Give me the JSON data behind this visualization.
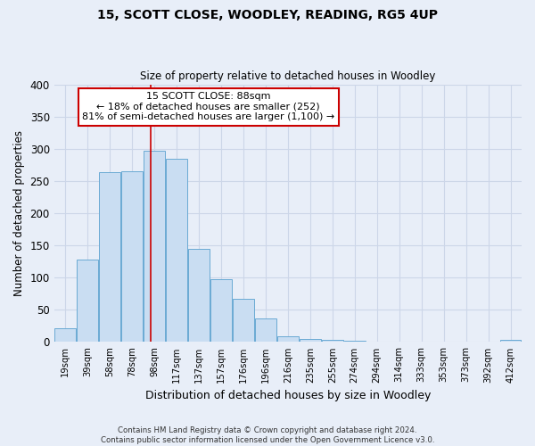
{
  "title": "15, SCOTT CLOSE, WOODLEY, READING, RG5 4UP",
  "subtitle": "Size of property relative to detached houses in Woodley",
  "xlabel": "Distribution of detached houses by size in Woodley",
  "ylabel": "Number of detached properties",
  "bar_labels": [
    "19sqm",
    "39sqm",
    "58sqm",
    "78sqm",
    "98sqm",
    "117sqm",
    "137sqm",
    "157sqm",
    "176sqm",
    "196sqm",
    "216sqm",
    "235sqm",
    "255sqm",
    "274sqm",
    "294sqm",
    "314sqm",
    "333sqm",
    "353sqm",
    "373sqm",
    "392sqm",
    "412sqm"
  ],
  "bar_heights": [
    22,
    128,
    263,
    265,
    297,
    285,
    145,
    98,
    67,
    37,
    9,
    5,
    4,
    2,
    0,
    0,
    0,
    0,
    0,
    0,
    3
  ],
  "bar_color": "#c9ddf2",
  "bar_edge_color": "#6aaad4",
  "vline_x": 3.82,
  "vline_color": "#cc0000",
  "annotation_text": "15 SCOTT CLOSE: 88sqm\n← 18% of detached houses are smaller (252)\n81% of semi-detached houses are larger (1,100) →",
  "annotation_box_color": "#ffffff",
  "annotation_box_edge": "#cc0000",
  "ylim": [
    0,
    400
  ],
  "yticks": [
    0,
    50,
    100,
    150,
    200,
    250,
    300,
    350,
    400
  ],
  "grid_color": "#ccd6e8",
  "background_color": "#e8eef8",
  "footer_line1": "Contains HM Land Registry data © Crown copyright and database right 2024.",
  "footer_line2": "Contains public sector information licensed under the Open Government Licence v3.0."
}
